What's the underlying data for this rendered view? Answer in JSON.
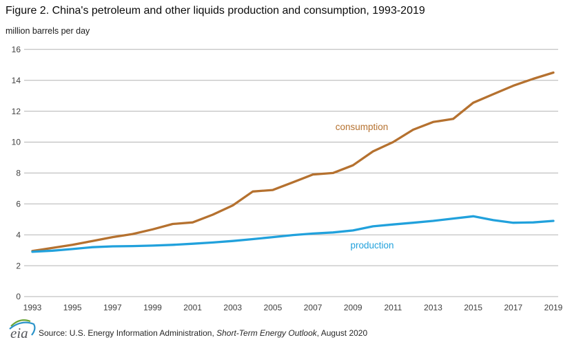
{
  "header": {
    "title": "Figure 2. China's petroleum and other liquids production and consumption, 1993-2019",
    "unit_label": "million barrels per day"
  },
  "chart_data": {
    "type": "line",
    "x": [
      1993,
      1994,
      1995,
      1996,
      1997,
      1998,
      1999,
      2000,
      2001,
      2002,
      2003,
      2004,
      2005,
      2006,
      2007,
      2008,
      2009,
      2010,
      2011,
      2012,
      2013,
      2014,
      2015,
      2016,
      2017,
      2018,
      2019
    ],
    "series": [
      {
        "name": "consumption",
        "label": "consumption",
        "color": "#b5712f",
        "values": [
          2.95,
          3.15,
          3.35,
          3.6,
          3.85,
          4.05,
          4.35,
          4.7,
          4.8,
          5.3,
          5.9,
          6.8,
          6.9,
          7.4,
          7.9,
          8.0,
          8.5,
          9.4,
          10.0,
          10.8,
          11.3,
          11.5,
          12.55,
          13.1,
          13.65,
          14.1,
          14.5
        ]
      },
      {
        "name": "production",
        "label": "production",
        "color": "#21a1dc",
        "values": [
          2.9,
          2.97,
          3.08,
          3.2,
          3.25,
          3.27,
          3.3,
          3.35,
          3.42,
          3.5,
          3.6,
          3.72,
          3.85,
          3.98,
          4.08,
          4.15,
          4.28,
          4.55,
          4.67,
          4.78,
          4.9,
          5.05,
          5.2,
          4.95,
          4.78,
          4.8,
          4.9
        ]
      }
    ],
    "ylim": [
      0,
      16
    ],
    "yticks": [
      0,
      2,
      4,
      6,
      8,
      10,
      12,
      14,
      16
    ],
    "xticks": [
      1993,
      1995,
      1997,
      1999,
      2001,
      2003,
      2005,
      2007,
      2009,
      2011,
      2013,
      2015,
      2017,
      2019
    ],
    "grid": "horizontal",
    "legend": "inline-labels",
    "gridline_color": "#b3b3b3"
  },
  "footer": {
    "logo": "eia-logo",
    "source_prefix": "Source: U.S. Energy Information Administration, ",
    "source_italic": "Short-Term Energy Outlook",
    "source_suffix": ", August 2020"
  }
}
